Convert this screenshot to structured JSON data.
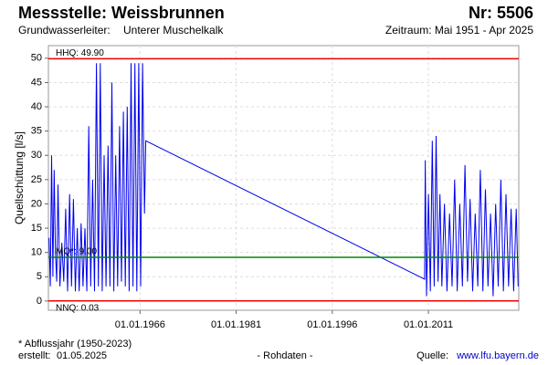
{
  "chart_data": {
    "type": "line",
    "title": "Messstelle: Weissbrunnen",
    "number": "Nr: 5506",
    "aquifer_label": "Grundwasserleiter:",
    "aquifer": "Unterer Muschelkalk",
    "period": "Zeitraum: Mai 1951 - Apr 2025",
    "y_label": "Quellschüttung [l/s]",
    "footnote": "* Abflussjahr (1950-2023)",
    "created_label": "erstellt:",
    "created": "01.05.2025",
    "data_kind": "- Rohdaten -",
    "source_label": "Quelle:",
    "source": "www.lfu.bayern.de",
    "grid": true,
    "xlim": [
      1951.7,
      2025.1
    ],
    "xticks": [
      {
        "value": 1966,
        "label": "01.01.1966"
      },
      {
        "value": 1981,
        "label": "01.01.1981"
      },
      {
        "value": 1996,
        "label": "01.01.1996"
      },
      {
        "value": 2011,
        "label": "01.01.2011"
      }
    ],
    "ylim": [
      -1.9,
      52.6
    ],
    "yticks": [
      0,
      5,
      10,
      15,
      20,
      25,
      30,
      35,
      40,
      45,
      50
    ],
    "reference_lines": [
      {
        "label": "HHQ: 49.90",
        "value": 49.9,
        "color": "#ee0000"
      },
      {
        "label": "MQ*: 9.00",
        "value": 9.0,
        "color": "#008800"
      },
      {
        "label": "NNQ: 0.03",
        "value": 0.03,
        "color": "#ee0000"
      }
    ],
    "x": [
      1951.8,
      1952.0,
      1952.2,
      1952.4,
      1952.6,
      1952.8,
      1953.0,
      1953.2,
      1953.5,
      1953.8,
      1954.1,
      1954.4,
      1954.7,
      1955.0,
      1955.3,
      1955.6,
      1955.9,
      1956.2,
      1956.5,
      1956.8,
      1957.1,
      1957.4,
      1957.7,
      1958.0,
      1958.3,
      1958.6,
      1958.9,
      1959.2,
      1959.5,
      1959.8,
      1960.1,
      1960.4,
      1960.7,
      1961.0,
      1961.3,
      1961.6,
      1961.9,
      1962.2,
      1962.5,
      1962.8,
      1963.1,
      1963.4,
      1963.7,
      1964.0,
      1964.3,
      1964.6,
      1964.9,
      1965.2,
      1965.5,
      1965.8,
      1966.1,
      1966.4,
      1966.7,
      1966.9,
      2010.4,
      2010.5,
      2010.7,
      2011.0,
      2011.3,
      2011.6,
      2011.9,
      2012.2,
      2012.5,
      2012.8,
      2013.1,
      2013.5,
      2013.9,
      2014.3,
      2014.7,
      2015.1,
      2015.5,
      2015.9,
      2016.3,
      2016.7,
      2017.1,
      2017.5,
      2017.9,
      2018.3,
      2018.7,
      2019.1,
      2019.5,
      2019.9,
      2020.3,
      2020.7,
      2021.1,
      2021.5,
      2021.9,
      2022.3,
      2022.7,
      2023.1,
      2023.5,
      2023.9,
      2024.3,
      2024.7,
      2025.0
    ],
    "series": [
      {
        "name": "Quellschüttung",
        "color": "#0000ee",
        "values": [
          13,
          3,
          30,
          5,
          27,
          10,
          4,
          24,
          3,
          12,
          4,
          19,
          2,
          22,
          3,
          21,
          2,
          15,
          2,
          16,
          3,
          15,
          2,
          36,
          3,
          25,
          2,
          49,
          3,
          49,
          2,
          30,
          3,
          32,
          3,
          45,
          2,
          30,
          3,
          36,
          4,
          39,
          3,
          40,
          2,
          49,
          3,
          49,
          2,
          49,
          3,
          49,
          18,
          33,
          4.5,
          29,
          1,
          22,
          2,
          33,
          3,
          34,
          4,
          22,
          3,
          20,
          2,
          18,
          3,
          25,
          2,
          20,
          3,
          28,
          4,
          21,
          2,
          18,
          3,
          27,
          2,
          23,
          3,
          18,
          1,
          20,
          3,
          25,
          2,
          22,
          3,
          19,
          2,
          19,
          3
        ]
      }
    ]
  }
}
